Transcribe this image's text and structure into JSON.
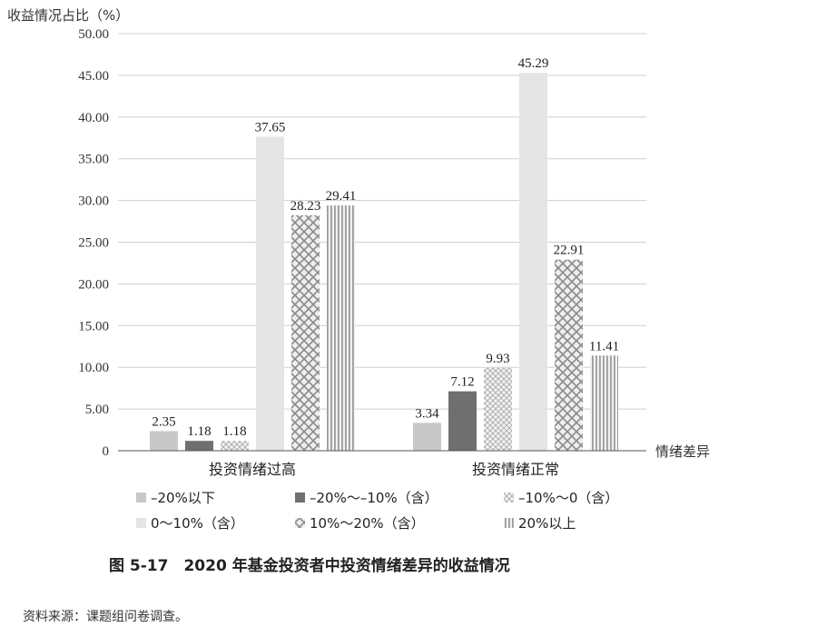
{
  "chart_data": {
    "type": "bar",
    "ylabel": "收益情况占比（%）",
    "xlabel": "情绪差异",
    "ylim": [
      0,
      50
    ],
    "yticks": [
      "0",
      "5.00",
      "10.00",
      "15.00",
      "20.00",
      "25.00",
      "30.00",
      "35.00",
      "40.00",
      "45.00",
      "50.00"
    ],
    "grid": true,
    "legend_position": "bottom",
    "categories": [
      "投资情绪过高",
      "投资情绪正常"
    ],
    "series": [
      {
        "name": "–20%以下",
        "values": [
          2.35,
          3.34
        ],
        "labels": [
          "2.35",
          "3.34"
        ],
        "pattern": "light-solid",
        "color": "#c9c9c9"
      },
      {
        "name": "–20%～–10%（含）",
        "values": [
          1.18,
          7.12
        ],
        "labels": [
          "1.18",
          "7.12"
        ],
        "pattern": "dark-solid",
        "color": "#6e6e6e"
      },
      {
        "name": "–10%～0（含）",
        "values": [
          1.18,
          9.93
        ],
        "labels": [
          "1.18",
          "9.93"
        ],
        "pattern": "small-cross",
        "color": "#bdbdbd"
      },
      {
        "name": "0～10%（含）",
        "values": [
          37.65,
          45.29
        ],
        "labels": [
          "37.65",
          "45.29"
        ],
        "pattern": "pale-solid",
        "color": "#e4e4e4"
      },
      {
        "name": "10%～20%（含）",
        "values": [
          28.23,
          22.91
        ],
        "labels": [
          "28.23",
          "22.91"
        ],
        "pattern": "cross-hatch",
        "color": "#9a9a9a"
      },
      {
        "name": "20%以上",
        "values": [
          29.41,
          11.41
        ],
        "labels": [
          "29.41",
          "11.41"
        ],
        "pattern": "vertical-lines",
        "color": "#a8a8a8"
      }
    ]
  },
  "caption": "图 5-17　2020 年基金投资者中投资情绪差异的收益情况",
  "source": "资料来源：课题组问卷调查。"
}
